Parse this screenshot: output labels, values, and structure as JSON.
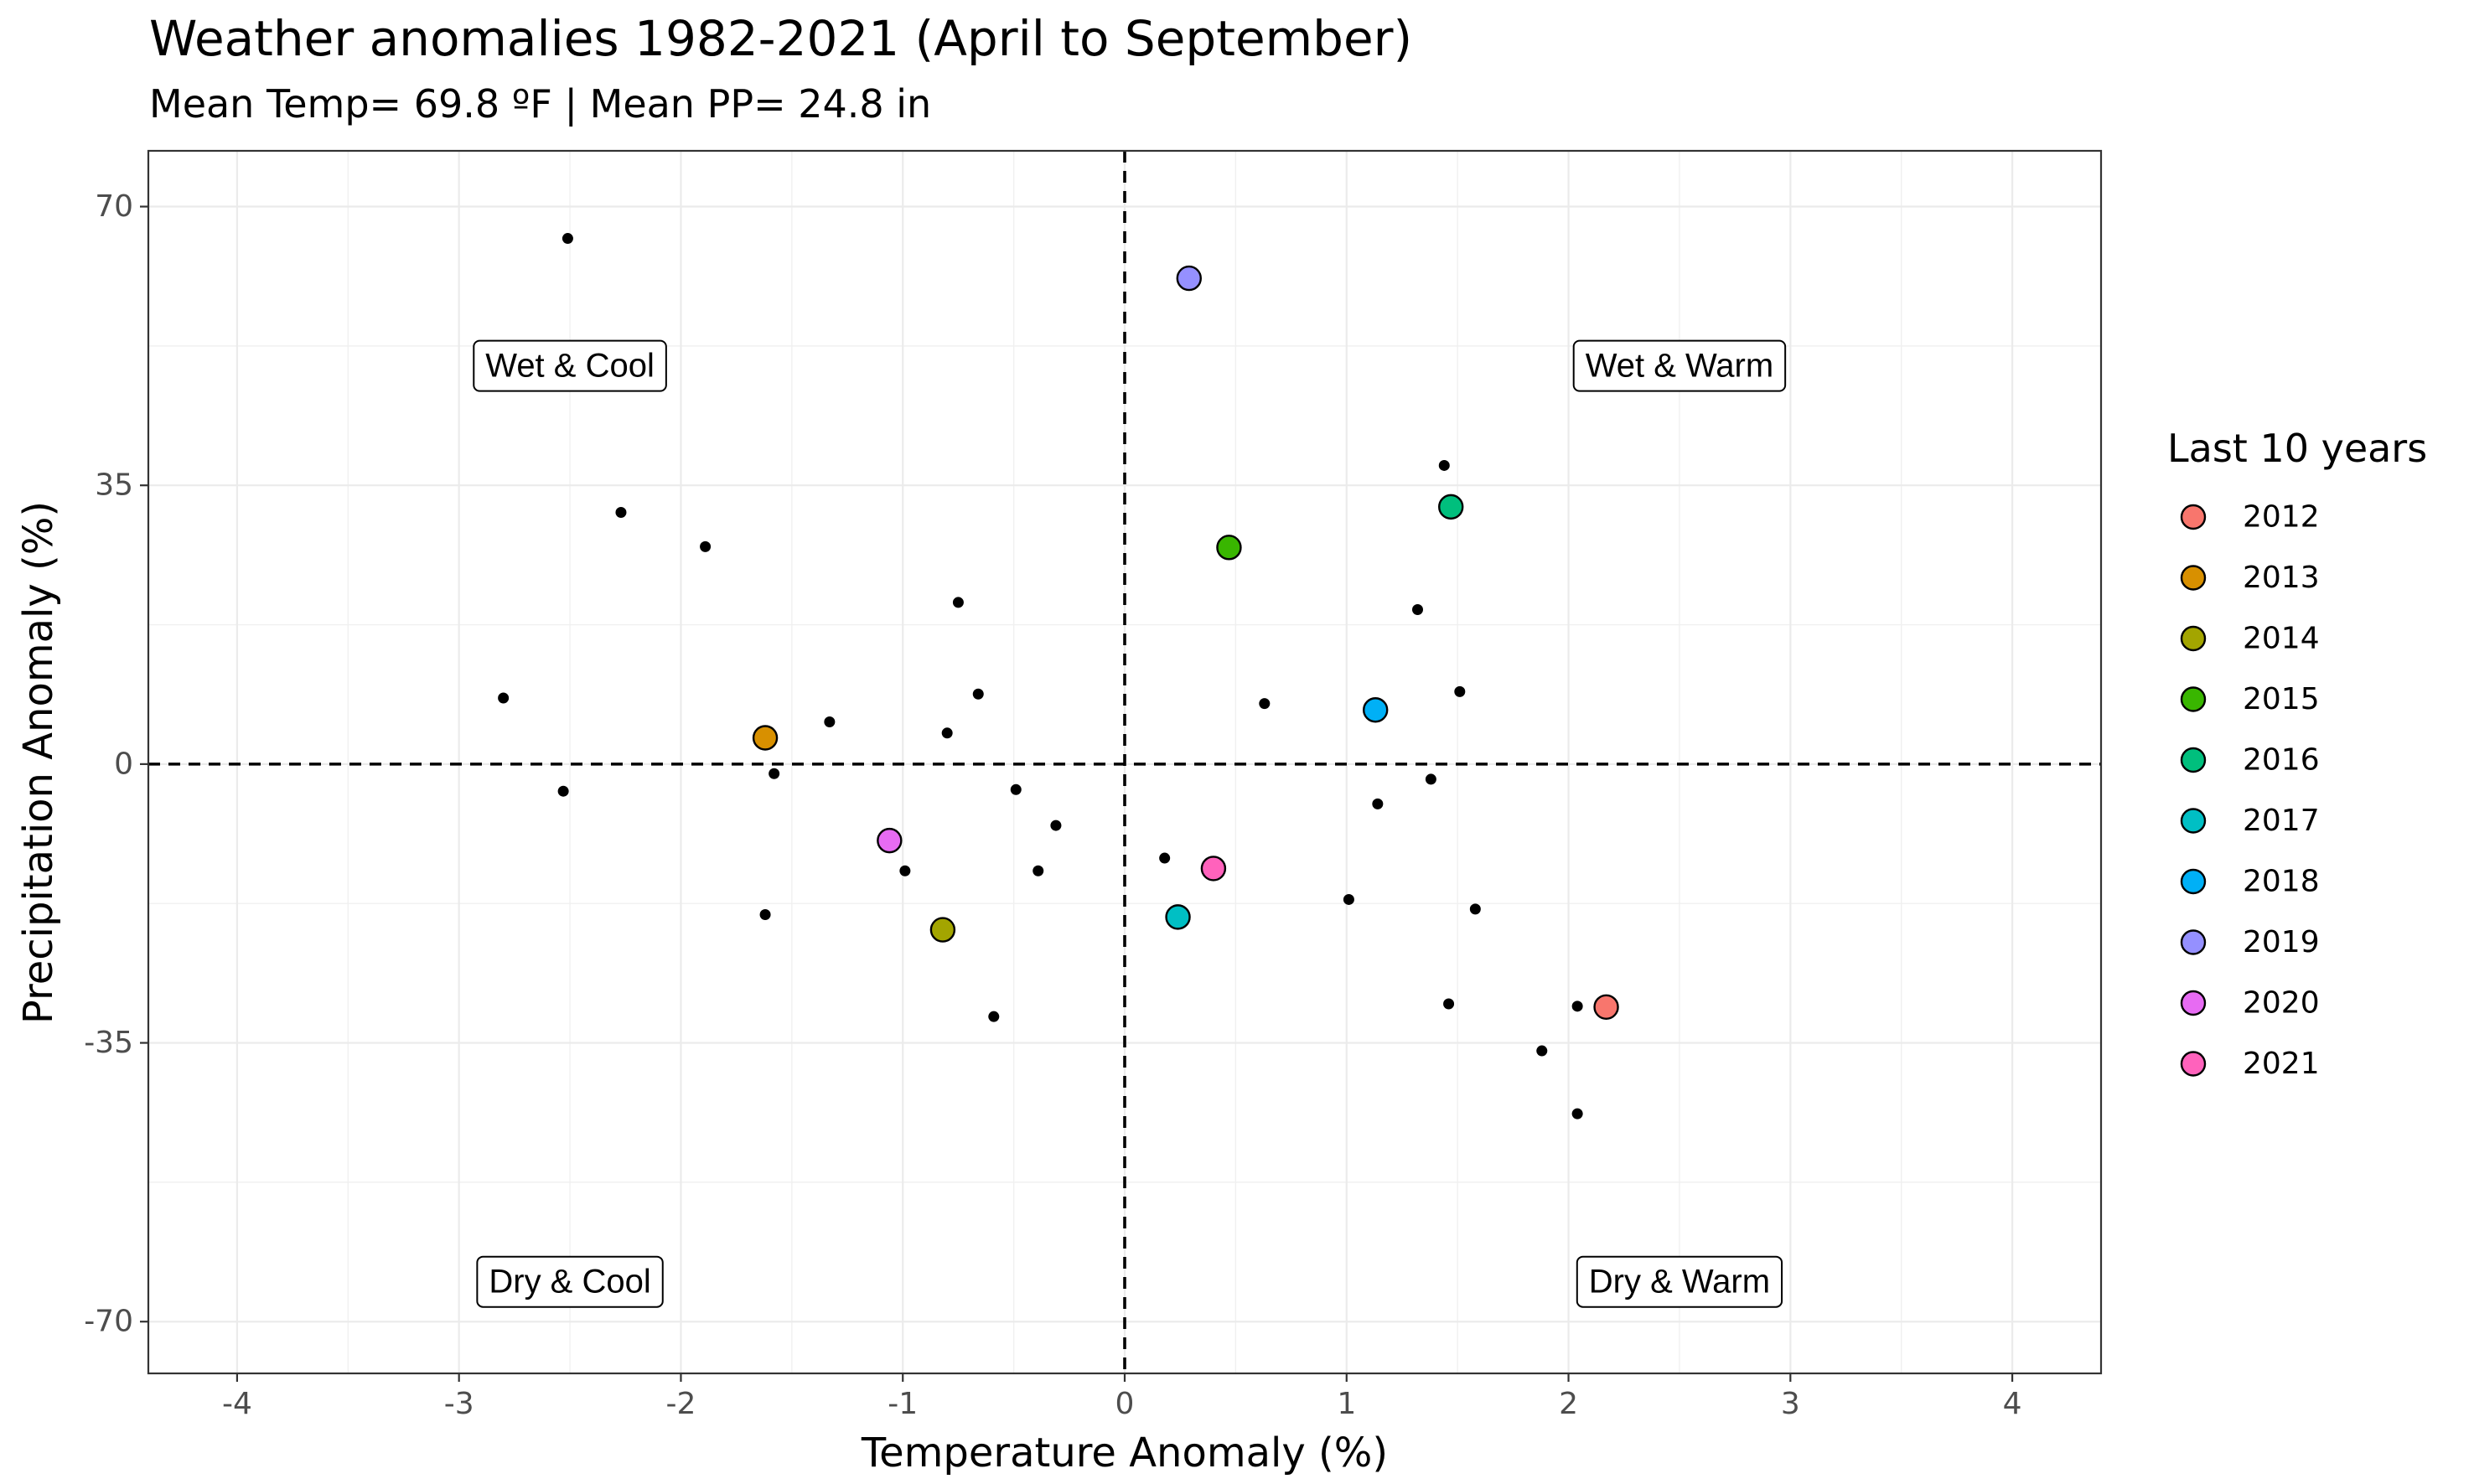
{
  "chart_data": {
    "type": "scatter",
    "title": "Weather anomalies 1982-2021 (April to September)",
    "subtitle": "Mean Temp= 69.8 ºF | Mean PP= 24.8 in",
    "xlabel": "Temperature Anomaly (%)",
    "ylabel": "Precipitation Anomaly (%)",
    "xlim": [
      -4.4,
      4.4
    ],
    "ylim": [
      -76.5,
      77
    ],
    "x_ticks": [
      -4,
      -3,
      -2,
      -1,
      0,
      1,
      2,
      3,
      4
    ],
    "y_ticks": [
      -70,
      -35,
      0,
      35,
      70
    ],
    "grid": true,
    "reference_lines": {
      "x": 0,
      "y": 0,
      "style": "dashed"
    },
    "quadrant_labels": [
      {
        "text": "Wet & Cool",
        "x": -2.5,
        "y": 50
      },
      {
        "text": "Wet & Warm",
        "x": 2.5,
        "y": 50
      },
      {
        "text": "Dry & Cool",
        "x": -2.5,
        "y": -65
      },
      {
        "text": "Dry & Warm",
        "x": 2.5,
        "y": -65
      }
    ],
    "legend": {
      "title": "Last 10 years",
      "position": "right"
    },
    "highlighted_series": [
      {
        "name": "2012",
        "color": "#F8766D",
        "x": 2.17,
        "y": -30.5
      },
      {
        "name": "2013",
        "color": "#D89000",
        "x": -1.62,
        "y": 3.3
      },
      {
        "name": "2014",
        "color": "#A3A500",
        "x": -0.82,
        "y": -20.8
      },
      {
        "name": "2015",
        "color": "#39B600",
        "x": 0.47,
        "y": 27.2
      },
      {
        "name": "2016",
        "color": "#00BF7D",
        "x": 1.47,
        "y": 32.3
      },
      {
        "name": "2017",
        "color": "#00BFC4",
        "x": 0.24,
        "y": -19.2
      },
      {
        "name": "2018",
        "color": "#00B0F6",
        "x": 1.13,
        "y": 6.8
      },
      {
        "name": "2019",
        "color": "#9590FF",
        "x": 0.29,
        "y": 61
      },
      {
        "name": "2020",
        "color": "#E76BF3",
        "x": -1.06,
        "y": -9.6
      },
      {
        "name": "2021",
        "color": "#FF62BC",
        "x": 0.4,
        "y": -13.1
      }
    ],
    "other_years": [
      {
        "x": -2.51,
        "y": 66
      },
      {
        "x": -2.27,
        "y": 31.6
      },
      {
        "x": -1.89,
        "y": 27.3
      },
      {
        "x": -2.8,
        "y": 8.3
      },
      {
        "x": -2.53,
        "y": -3.4
      },
      {
        "x": -1.33,
        "y": 5.3
      },
      {
        "x": -1.58,
        "y": -1.2
      },
      {
        "x": -1.62,
        "y": -18.9
      },
      {
        "x": -0.99,
        "y": -13.4
      },
      {
        "x": -0.75,
        "y": 20.3
      },
      {
        "x": -0.66,
        "y": 8.8
      },
      {
        "x": -0.8,
        "y": 3.9
      },
      {
        "x": -0.49,
        "y": -3.2
      },
      {
        "x": -0.31,
        "y": -7.7
      },
      {
        "x": -0.39,
        "y": -13.4
      },
      {
        "x": -0.59,
        "y": -31.7
      },
      {
        "x": 0.18,
        "y": -11.8
      },
      {
        "x": 0.63,
        "y": 7.6
      },
      {
        "x": 1.01,
        "y": -17
      },
      {
        "x": 1.14,
        "y": -5
      },
      {
        "x": 1.32,
        "y": 19.4
      },
      {
        "x": 1.44,
        "y": 37.5
      },
      {
        "x": 1.51,
        "y": 9.1
      },
      {
        "x": 1.38,
        "y": -1.9
      },
      {
        "x": 1.58,
        "y": -18.2
      },
      {
        "x": 1.46,
        "y": -30.1
      },
      {
        "x": 2.04,
        "y": -30.4
      },
      {
        "x": 1.88,
        "y": -36
      },
      {
        "x": 2.04,
        "y": -43.9
      }
    ]
  }
}
